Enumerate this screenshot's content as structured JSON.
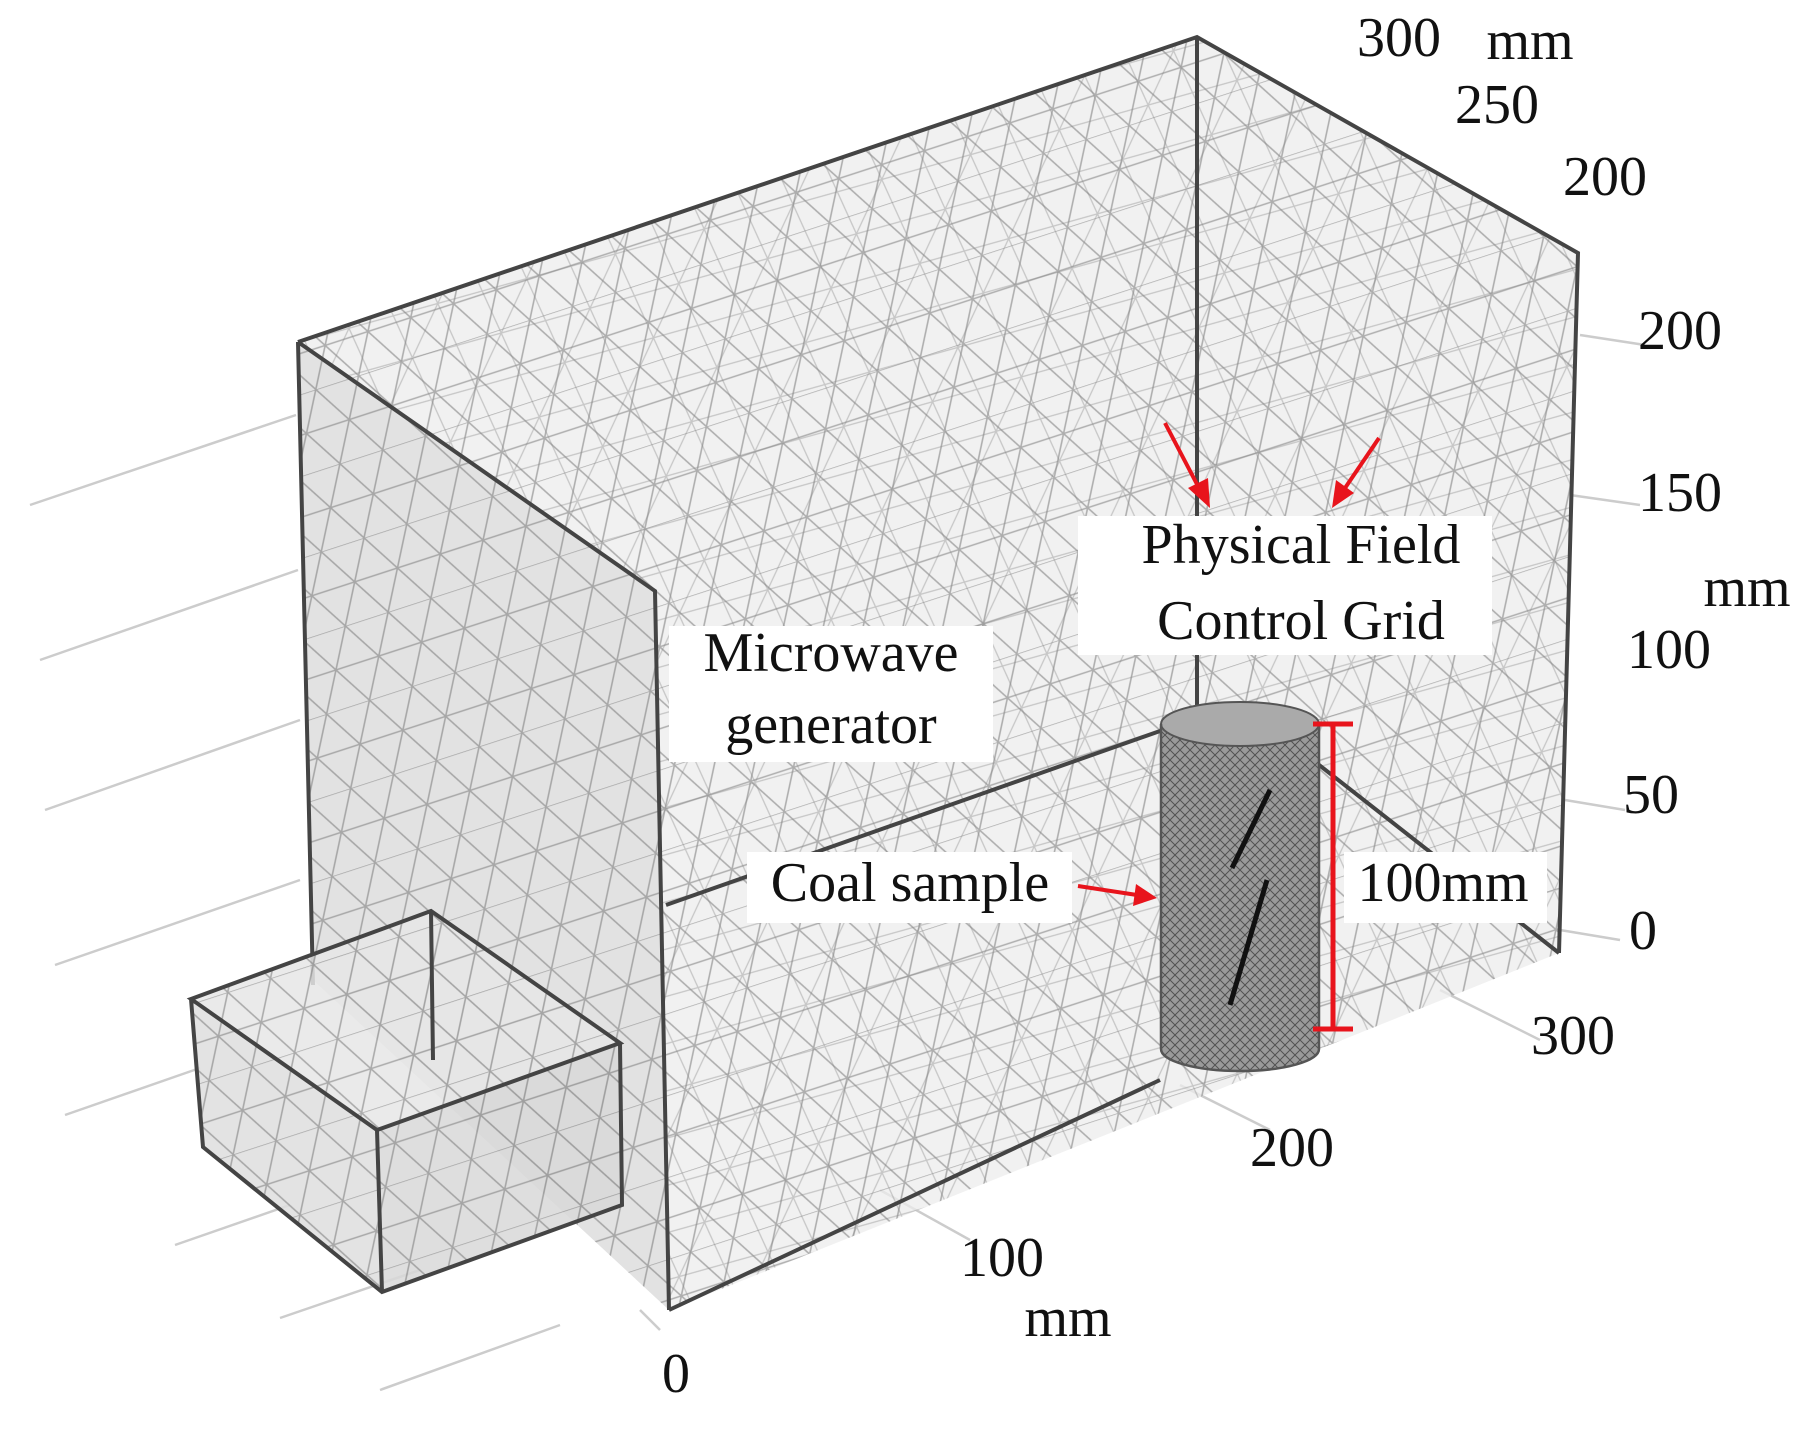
{
  "axes": {
    "x": {
      "ticks": [
        0,
        100,
        200,
        300
      ],
      "unit": "mm"
    },
    "y": {
      "ticks": [
        300,
        250,
        200
      ],
      "unit": "mm"
    },
    "z": {
      "ticks": [
        200,
        150,
        100,
        50,
        0
      ],
      "unit": "mm"
    }
  },
  "labels": {
    "grid": {
      "lines": [
        "Physical Field",
        "Control Grid"
      ]
    },
    "generator": {
      "lines": [
        "Microwave",
        "generator"
      ]
    },
    "sample": "Coal sample",
    "height": "100mm"
  }
}
